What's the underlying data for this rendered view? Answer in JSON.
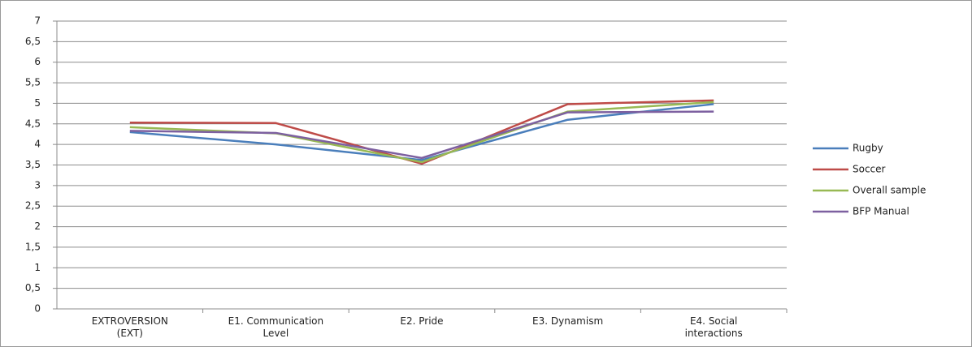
{
  "chart_data": {
    "type": "line",
    "categories": [
      "EXTROVERSION (EXT)",
      "E1. Communication Level",
      "E2. Pride",
      "E3. Dynamism",
      "E4. Social interactions"
    ],
    "series": [
      {
        "name": "Rugby",
        "color": "#4a7ebb",
        "values": [
          4.3,
          4.0,
          3.62,
          4.6,
          4.98
        ]
      },
      {
        "name": "Soccer",
        "color": "#be4b48",
        "values": [
          4.53,
          4.52,
          3.53,
          4.98,
          5.07
        ]
      },
      {
        "name": "Overall sample",
        "color": "#98b954",
        "values": [
          4.42,
          4.27,
          3.57,
          4.8,
          5.03
        ]
      },
      {
        "name": "BFP Manual",
        "color": "#7d60a0",
        "values": [
          4.33,
          4.28,
          3.67,
          4.78,
          4.8
        ]
      }
    ],
    "ylim": [
      0,
      7
    ],
    "yticks": [
      0,
      {
        "value": 0.5,
        "label": "0,5"
      },
      1,
      {
        "value": 1.5,
        "label": "1,5"
      },
      2,
      {
        "value": 2.5,
        "label": "2,5"
      },
      3,
      {
        "value": 3.5,
        "label": "3,5"
      },
      4,
      {
        "value": 4.5,
        "label": "4,5"
      },
      5,
      {
        "value": 5.5,
        "label": "5,5"
      },
      6,
      {
        "value": 6.5,
        "label": "6,5"
      },
      7
    ],
    "grid": true,
    "legend": "right"
  }
}
